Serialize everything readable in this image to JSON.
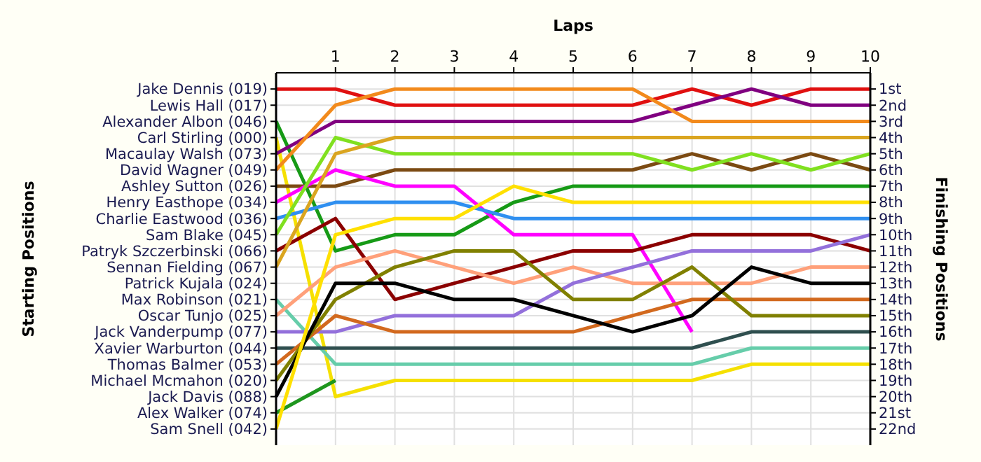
{
  "chart_data": {
    "type": "line",
    "xlabel": "Laps",
    "ylabel": "Finishing Positions",
    "x": [
      0,
      1,
      2,
      3,
      4,
      5,
      6,
      7,
      8,
      9,
      10
    ],
    "xlim": [
      0,
      10
    ],
    "xticks": [
      1,
      2,
      3,
      4,
      5,
      6,
      7,
      8,
      9,
      10
    ],
    "annotations": [
      "Starting Positions",
      "Jake Dennis (019)",
      "Lewis Hall (017)",
      "Alexander Albon (046)",
      "Carl Stirling (000)",
      "Macaulay Walsh (073)",
      "David Wagner (049)",
      "Ashley Sutton (026)",
      "Henry Easthope (034)",
      "Charlie Eastwood (036)",
      "Sam Blake (045)",
      "Patryk Szczerbinski (066)",
      "Sennan Fielding (067)",
      "Patrick Kujala (024)",
      "Max Robinson (021)",
      "Oscar Tunjo (025)",
      "Jack Vanderpump (077)",
      "Xavier Warburton (044)",
      "Thomas Balmer (053)",
      "Michael Mcmahon (020)",
      "Jack Davis (088)",
      "Alex Walker (074)",
      "Sam Snell (042)"
    ],
    "ylim": [
      23,
      0
    ],
    "yticks": [
      {
        "value": 1,
        "label": "1st"
      },
      {
        "value": 2,
        "label": "2nd"
      },
      {
        "value": 3,
        "label": "3rd"
      },
      {
        "value": 4,
        "label": "4th"
      },
      {
        "value": 5,
        "label": "5th"
      },
      {
        "value": 6,
        "label": "6th"
      },
      {
        "value": 7,
        "label": "7th"
      },
      {
        "value": 8,
        "label": "8th"
      },
      {
        "value": 9,
        "label": "9th"
      },
      {
        "value": 10,
        "label": "10th"
      },
      {
        "value": 11,
        "label": "11th"
      },
      {
        "value": 12,
        "label": "12th"
      },
      {
        "value": 13,
        "label": "13th"
      },
      {
        "value": 14,
        "label": "14th"
      },
      {
        "value": 15,
        "label": "15th"
      },
      {
        "value": 16,
        "label": "16th"
      },
      {
        "value": 17,
        "label": "17th"
      },
      {
        "value": 18,
        "label": "18th"
      },
      {
        "value": 19,
        "label": "19th"
      },
      {
        "value": 20,
        "label": "20th"
      },
      {
        "value": 21,
        "label": "21st"
      },
      {
        "value": 22,
        "label": "22nd"
      }
    ],
    "grid": true,
    "marker": "none",
    "line_style": "solid",
    "series": [
      {
        "color": "#e01010",
        "values": [
          1,
          1,
          2,
          2,
          2,
          2,
          2,
          1,
          2,
          1,
          1
        ]
      },
      {
        "color": "#169a16",
        "values": [
          3,
          11,
          10,
          10,
          8,
          7,
          7,
          7,
          7,
          7,
          7
        ]
      },
      {
        "color": "#f5e000",
        "values": [
          4,
          20,
          19,
          19,
          19,
          19,
          19,
          19,
          18,
          18,
          18
        ]
      },
      {
        "color": "#800080",
        "values": [
          5,
          3,
          3,
          3,
          3,
          3,
          3,
          2,
          1,
          2,
          2
        ]
      },
      {
        "color": "#f28a1c",
        "values": [
          6,
          2,
          1,
          1,
          1,
          1,
          1,
          3,
          3,
          3,
          3
        ]
      },
      {
        "color": "#7b4a12",
        "values": [
          7,
          7,
          6,
          6,
          6,
          6,
          6,
          5,
          6,
          5,
          6
        ]
      },
      {
        "color": "#ff00ff",
        "values": [
          8,
          6,
          7,
          7,
          10,
          10,
          10,
          16,
          null,
          null,
          null
        ]
      },
      {
        "color": "#2f8ff0",
        "values": [
          9,
          8,
          8,
          8,
          9,
          9,
          9,
          9,
          9,
          9,
          9
        ]
      },
      {
        "color": "#80e020",
        "values": [
          10,
          4,
          5,
          5,
          5,
          5,
          5,
          6,
          5,
          6,
          5
        ]
      },
      {
        "color": "#8b0000",
        "values": [
          11,
          9,
          14,
          13,
          12,
          11,
          11,
          10,
          10,
          10,
          11
        ]
      },
      {
        "color": "#daa520",
        "values": [
          12,
          5,
          4,
          4,
          4,
          4,
          4,
          4,
          4,
          4,
          4
        ]
      },
      {
        "color": "#66cdaa",
        "values": [
          14,
          18,
          18,
          18,
          18,
          18,
          18,
          18,
          17,
          17,
          17
        ]
      },
      {
        "color": "#ffa07a",
        "values": [
          15,
          12,
          11,
          12,
          13,
          12,
          13,
          13,
          13,
          12,
          12
        ]
      },
      {
        "color": "#9370db",
        "values": [
          16,
          16,
          15,
          15,
          15,
          13,
          12,
          11,
          11,
          11,
          10
        ]
      },
      {
        "color": "#2f4f4f",
        "values": [
          17,
          17,
          17,
          17,
          17,
          17,
          17,
          17,
          16,
          16,
          16
        ]
      },
      {
        "color": "#d2691e",
        "values": [
          18,
          15,
          16,
          16,
          16,
          16,
          15,
          14,
          14,
          14,
          14
        ]
      },
      {
        "color": "#808000",
        "values": [
          19,
          14,
          12,
          11,
          11,
          14,
          14,
          12,
          15,
          15,
          15
        ]
      },
      {
        "color": "#000000",
        "values": [
          20,
          13,
          13,
          14,
          14,
          15,
          16,
          15,
          12,
          13,
          13
        ]
      },
      {
        "color": "#1e961e",
        "values": [
          21,
          19,
          null,
          null,
          null,
          null,
          null,
          null,
          null,
          null,
          null
        ]
      },
      {
        "color": "#ffe000",
        "values": [
          22,
          10,
          9,
          9,
          7,
          8,
          8,
          8,
          8,
          8,
          8
        ]
      }
    ]
  }
}
